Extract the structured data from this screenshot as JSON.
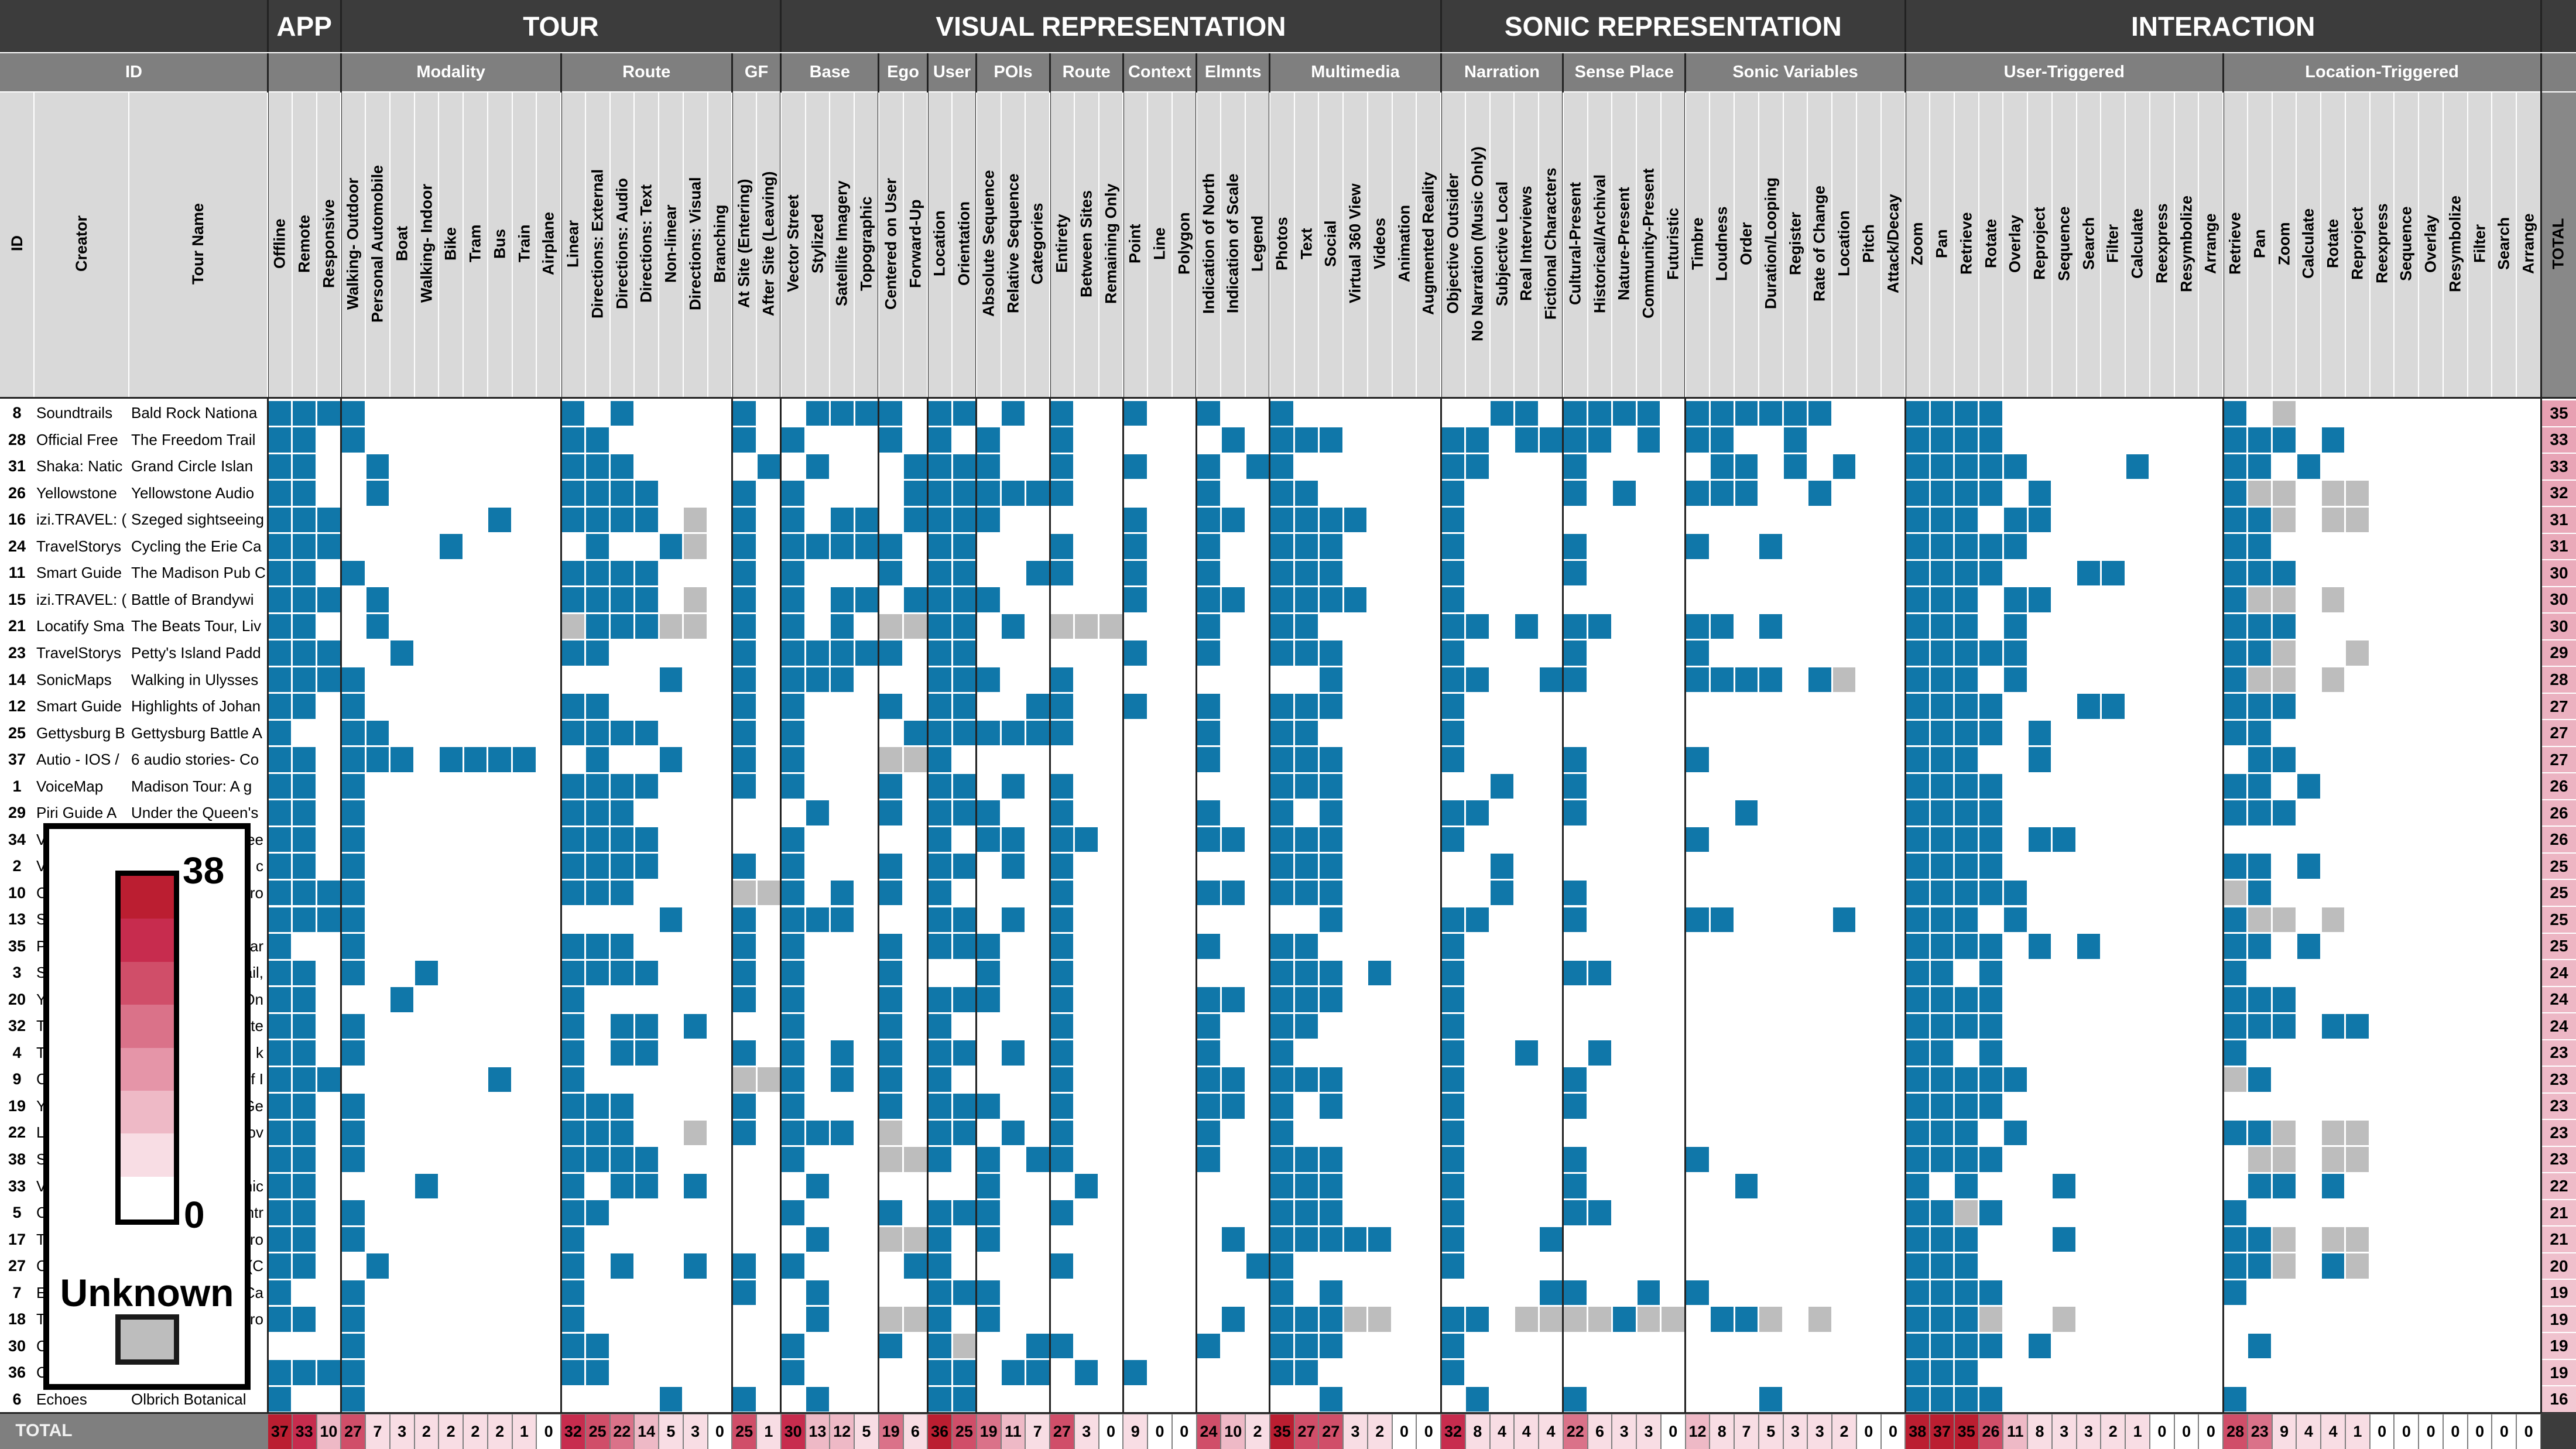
{
  "chart_data": {
    "type": "heatmap",
    "id_header": {
      "group": "ID",
      "id": "ID",
      "creator": "Creator",
      "tour": "Tour Name"
    },
    "total_label": "TOTAL",
    "total_row_label": "TOTAL",
    "groups": [
      {
        "label": "APP",
        "span": 3
      },
      {
        "label": "TOUR",
        "span": 18
      },
      {
        "label": "VISUAL REPRESENTATION",
        "span": 27
      },
      {
        "label": "SONIC REPRESENTATION",
        "span": 19
      },
      {
        "label": "INTERACTION",
        "span": 26
      }
    ],
    "subgroups": [
      {
        "label": "",
        "span": 3
      },
      {
        "label": "Modality",
        "span": 9
      },
      {
        "label": "Route",
        "span": 7
      },
      {
        "label": "GF",
        "span": 2
      },
      {
        "label": "Base",
        "span": 4
      },
      {
        "label": "Ego",
        "span": 2
      },
      {
        "label": "User",
        "span": 2
      },
      {
        "label": "POIs",
        "span": 3
      },
      {
        "label": "Route",
        "span": 3
      },
      {
        "label": "Context",
        "span": 3
      },
      {
        "label": "Elmnts",
        "span": 3
      },
      {
        "label": "Multimedia",
        "span": 7
      },
      {
        "label": "Narration",
        "span": 5
      },
      {
        "label": "Sense Place",
        "span": 5
      },
      {
        "label": "Sonic Variables",
        "span": 9
      },
      {
        "label": "User-Triggered",
        "span": 13
      },
      {
        "label": "Location-Triggered",
        "span": 13
      }
    ],
    "columns": [
      "Offline",
      "Remote",
      "Responsive",
      "Walking- Outdoor",
      "Personal Automobile",
      "Boat",
      "Walking- Indoor",
      "Bike",
      "Tram",
      "Bus",
      "Train",
      "Airplane",
      "Linear",
      "Directions: External",
      "Directions: Audio",
      "Directions: Text",
      "Non-linear",
      "Directions: Visual",
      "Branching",
      "At Site (Entering)",
      "After Site (Leaving)",
      "Vector Street",
      "Stylized",
      "Satellite Imagery",
      "Topographic",
      "Centered on User",
      "Forward-Up",
      "Location",
      "Orientation",
      "Absolute Sequence",
      "Relative Sequence",
      "Categories",
      "Entirety",
      "Between Sites",
      "Remaining Only",
      "Point",
      "Line",
      "Polygon",
      "Indication of North",
      "Indication of Scale",
      "Legend",
      "Photos",
      "Text",
      "Social",
      "Virtual 360 View",
      "Videos",
      "Animation",
      "Augmented Reality",
      "Objective Outsider",
      "No Narration (Music Only)",
      "Subjective Local",
      "Real Interviews",
      "Fictional Characters",
      "Cultural-Present",
      "Historical/Archival",
      "Nature-Present",
      "Community-Present",
      "Futuristic",
      "Timbre",
      "Loudness",
      "Order",
      "Duration/Looping",
      "Register",
      "Rate of Change",
      "Location",
      "Pitch",
      "Attack/Decay",
      "Zoom",
      "Pan",
      "Retrieve",
      "Rotate",
      "Overlay",
      "Reproject",
      "Sequence",
      "Search",
      "Filter",
      "Calculate",
      "Reexpress",
      "Resymbolize",
      "Arrange",
      "Retrieve",
      "Pan",
      "Zoom",
      "Calculate",
      "Rotate",
      "Reproject",
      "Reexpress",
      "Sequence",
      "Overlay",
      "Resymbolize",
      "Filter",
      "Search",
      "Arrange"
    ],
    "rows": [
      {
        "id": "8",
        "creator": "Soundtrails",
        "tour": "Bald Rock Nationa",
        "total": "35",
        "cells": "111 100000000 1010000 10 0111 10 11 010 100 100 100 1000000 00110 11110 111111000 1111000000000 10u0000000000"
      },
      {
        "id": "28",
        "creator": "Official Free",
        "tour": "The Freedom Trail",
        "total": "33",
        "cells": "110 100000000 1100000 10 1000 10 10 100 100 000 010 1110000 11011 11010 110010000 1111000000000 1110100000000"
      },
      {
        "id": "31",
        "creator": "Shaka: Natic",
        "tour": "Grand Circle Islan",
        "total": "33",
        "cells": "110 010000000 1110000 01 0100 01 11 100 100 100 101 1000000 11000 10000 011010100 1111100001000 1101000000000"
      },
      {
        "id": "26",
        "creator": "Yellowstone",
        "tour": "Yellowstone Audio",
        "total": "32",
        "cells": "110 010000000 1111000 10 1000 01 11 111 100 000 100 1100000 10000 10100 111001000 1111010000000 1uu0uu0000000"
      },
      {
        "id": "16",
        "creator": "izi.TRAVEL: (",
        "tour": "Szeged sightseeing",
        "total": "31",
        "cells": "111 000000100 11110u0 10 1011 01 11 100 000 100 110 1111000 10000 00000 000000000 1110110000000 11u0uu0000000"
      },
      {
        "id": "24",
        "creator": "TravelStorys",
        "tour": "Cycling the Erie Ca",
        "total": "31",
        "cells": "111 000010000 01001u0 10 1111 10 11 000 100 100 100 1110000 10000 10000 100100000 1111100000000 1100000000000"
      },
      {
        "id": "11",
        "creator": "Smart Guide",
        "tour": "The Madison Pub C",
        "total": "30",
        "cells": "110 100000000 1111000 10 1000 10 11 001 100 100 100 1110000 10000 10000 000000000 1111000110000 1110000000000"
      },
      {
        "id": "15",
        "creator": "izi.TRAVEL: (",
        "tour": "Battle of Brandywi",
        "total": "30",
        "cells": "111 010000000 11110u0 10 1011 01 11 100 000 100 110 1111000 10000 00000 000000000 1110110000000 1uu0u00000000"
      },
      {
        "id": "21",
        "creator": "Locatify Sma",
        "tour": "The Beats Tour, Liv",
        "total": "30",
        "cells": "110 010000000 u111uu0 10 1010 uu 11 010 uuu 000 100 1100000 11010 11000 110100000 1110100000000 1110000000000"
      },
      {
        "id": "23",
        "creator": "TravelStorys",
        "tour": "Petty's Island Padd",
        "total": "29",
        "cells": "111 001000000 1100000 10 1111 10 11 000 000 100 100 1110000 10000 10000 100000000 1111100000000 11u00u0000000"
      },
      {
        "id": "14",
        "creator": "SonicMaps",
        "tour": "Walking in Ulysses",
        "total": "28",
        "cells": "111 100000000 0000100 10 1110 00 11 100 100 000 000 0010000 11001 10000 111101u00 1110100000000 1uu0u00000000"
      },
      {
        "id": "12",
        "creator": "Smart Guide",
        "tour": "Highlights of Johan",
        "total": "27",
        "cells": "110 100000000 1100000 10 1000 10 11 001 100 100 100 1110000 10000 00000 000000000 1111000110000 1110000000000"
      },
      {
        "id": "25",
        "creator": "Gettysburg B",
        "tour": "Gettysburg Battle A",
        "total": "27",
        "cells": "100 110000000 1111000 10 1000 01 11 111 100 000 100 1100000 10000 00000 000000000 1111010000000 1100000000000"
      },
      {
        "id": "37",
        "creator": "Autio - IOS /",
        "tour": "6 audio stories- Co",
        "total": "27",
        "cells": "110 111011110 0100100 10 1000 uu 10 000 000 000 100 1110000 10000 10000 100000000 1110010000000 0110000000000"
      },
      {
        "id": "1",
        "creator": "VoiceMap",
        "tour": "Madison Tour: A g",
        "total": "26",
        "cells": "110 100000000 1111000 10 1000 10 11 010 100 000 000 1110000 00100 10000 000000000 1111000000000 1101000000000"
      },
      {
        "id": "29",
        "creator": "Piri Guide A",
        "tour": "Under the Queen's",
        "total": "26",
        "cells": "110 100000000 1110000 00 0100 10 11 100 100 000 100 1010000 11000 10000 001000000 1111000000000 1110000000000"
      },
      {
        "id": "34",
        "creator": "V",
        "tour": "See",
        "total": "26",
        "cells": "110 100000000 1111000 00 1000 00 10 110 110 000 110 1110000 10000 00000 100000000 1111011000000 0000000000000"
      },
      {
        "id": "2",
        "creator": "V",
        "tour": "ti c",
        "total": "25",
        "cells": "110 100000000 1111000 10 1000 10 11 010 100 000 000 1110000 00100 00000 000000000 1111000000000 1101000000000"
      },
      {
        "id": "10",
        "creator": "C",
        "tour": "hro",
        "total": "25",
        "cells": "111 100000000 1110000 uu 1010 10 10 000 100 000 110 1110000 00100 10000 000000000 1111100000000 u100000000000"
      },
      {
        "id": "13",
        "creator": "S",
        "tour": "",
        "total": "25",
        "cells": "111 100000000 0000100 10 1110 00 11 010 100 000 000 0010000 11000 10000 110000100 1110100000000 1uu0u00000000"
      },
      {
        "id": "35",
        "creator": "P",
        "tour": "ar",
        "total": "25",
        "cells": "100 100000000 1110000 10 1000 10 11 100 100 000 100 1100000 10000 00000 000000000 1111010100000 1101000000000"
      },
      {
        "id": "3",
        "creator": "S",
        "tour": "ail,",
        "total": "24",
        "cells": "110 100100000 1111000 10 1000 10 00 100 100 000 000 1110100 10000 11000 000000000 1101000000000 1000000000000"
      },
      {
        "id": "20",
        "creator": "Y",
        "tour": "On",
        "total": "24",
        "cells": "110 001000000 1000000 10 1000 10 11 100 100 000 110 1110000 10000 00000 000000000 1111000000000 1110000000000"
      },
      {
        "id": "32",
        "creator": "T",
        "tour": "otte",
        "total": "24",
        "cells": "110 100000000 1011010 00 1000 10 10 000 100 000 100 1100000 10000 00000 000000000 1111000000000 1110110000000"
      },
      {
        "id": "4",
        "creator": "T",
        "tour": "k",
        "total": "23",
        "cells": "110 100000000 1011000 10 1010 10 11 010 100 000 100 1000000 10010 01000 000000000 1101000000000 1000000000000"
      },
      {
        "id": "9",
        "creator": "C",
        "tour": "of I",
        "total": "23",
        "cells": "111 000000100 1000000 uu 1010 10 10 000 100 000 110 1110000 10000 10000 000000000 1111100000000 u100000000000"
      },
      {
        "id": "19",
        "creator": "Y",
        "tour": "Ge",
        "total": "23",
        "cells": "110 100000000 1110000 10 1000 10 11 100 100 000 110 1010000 10000 10000 000000000 1111000000000 0000000000000"
      },
      {
        "id": "22",
        "creator": "L",
        "tour": "rov",
        "total": "23",
        "cells": "110 100000000 11100u0 10 1110 u0 11 010 100 000 100 1000000 10000 00000 000000000 1110100000000 11u0uu0000000"
      },
      {
        "id": "38",
        "creator": "S",
        "tour": "",
        "total": "23",
        "cells": "110 100000000 1111000 00 1000 uu 10 101 100 000 100 1110000 10000 10000 100000000 1111000000000 0uu0uu0000000"
      },
      {
        "id": "33",
        "creator": "V",
        "tour": "hic",
        "total": "22",
        "cells": "110 000100000 1011010 00 0100 00 00 100 010 000 000 1110000 10000 10000 001000000 1010001000000 0110100000000"
      },
      {
        "id": "5",
        "creator": "C",
        "tour": "ntr",
        "total": "21",
        "cells": "110 100000000 1100000 00 1000 10 11 100 100 000 000 1110000 10000 11000 000000000 11u1000000000 1000000000000"
      },
      {
        "id": "17",
        "creator": "T",
        "tour": "Pro",
        "total": "21",
        "cells": "110 100000000 1000000 00 0100 uu 10 100 000 000 010 1111100 10001 00000 000000000 1110001000000 11u0uu0000000"
      },
      {
        "id": "27",
        "creator": "C",
        "tour": "F (C",
        "total": "20",
        "cells": "110 010000000 1010010 10 1000 01 10 000 100 000 001 1000000 10000 00000 000000000 1110000000000 11u01u0000000"
      },
      {
        "id": "7",
        "creator": "E",
        "tour": "Ca",
        "total": "19",
        "cells": "100 100000000 1000000 10 0100 00 11 100 000 000 000 1010000 00001 10010 100000000 1111000000000 1000000000000"
      },
      {
        "id": "18",
        "creator": "T",
        "tour": "dro",
        "total": "19",
        "cells": "110 100000000 1000000 00 0100 uu 10 100 000 000 010 111uu00 110uu uu1uu 011u0u000 111u00u000000 0000000000000"
      },
      {
        "id": "30",
        "creator": "C",
        "tour": "",
        "total": "19",
        "cells": "000 100000000 1100000 00 1000 10 1u 001 100 000 100 1110000 10000 00000 000000000 1111010000000 0100000000000"
      },
      {
        "id": "36",
        "creator": "C",
        "tour": "",
        "total": "19",
        "cells": "111 100000000 1100000 00 1000 00 11 011 010 100 000 1100000 10000 00000 000000000 1110000000000 0000000000000"
      },
      {
        "id": "6",
        "creator": "Echoes",
        "tour": "Olbrich Botanical",
        "total": "16",
        "cells": "100 100000000 0000100 10 0100 00 11 000 000 000 000 0010000 01000 10000 000100000 1111000000000 1000000000000"
      }
    ],
    "column_totals": [
      "37",
      "33",
      "10",
      "27",
      "7",
      "3",
      "2",
      "2",
      "2",
      "2",
      "1",
      "0",
      "32",
      "25",
      "22",
      "14",
      "5",
      "3",
      "0",
      "25",
      "1",
      "30",
      "13",
      "12",
      "5",
      "19",
      "6",
      "36",
      "25",
      "19",
      "11",
      "7",
      "27",
      "3",
      "0",
      "9",
      "0",
      "0",
      "24",
      "10",
      "2",
      "35",
      "27",
      "27",
      "3",
      "2",
      "0",
      "0",
      "32",
      "8",
      "4",
      "4",
      "4",
      "22",
      "6",
      "3",
      "3",
      "0",
      "12",
      "8",
      "7",
      "5",
      "3",
      "3",
      "2",
      "0",
      "0",
      "38",
      "37",
      "35",
      "26",
      "11",
      "8",
      "3",
      "3",
      "2",
      "1",
      "0",
      "0",
      "0",
      "28",
      "23",
      "9",
      "4",
      "4",
      "1",
      "0",
      "0",
      "0",
      "0",
      "0",
      "0",
      "0"
    ],
    "value_range": [
      0,
      38
    ],
    "legend": {
      "max": "38",
      "min": "0",
      "unknown_label": "Unknown",
      "placement": "bottom-left"
    },
    "colors": {
      "present": "#1077a9",
      "unknown": "#bdbdbd",
      "absent": "#ffffff",
      "scale": [
        "#ffffff",
        "#f8dde4",
        "#eeb9c6",
        "#e595a8",
        "#da7289",
        "#d04e69",
        "#c72c4e",
        "#bb1e31"
      ]
    }
  }
}
